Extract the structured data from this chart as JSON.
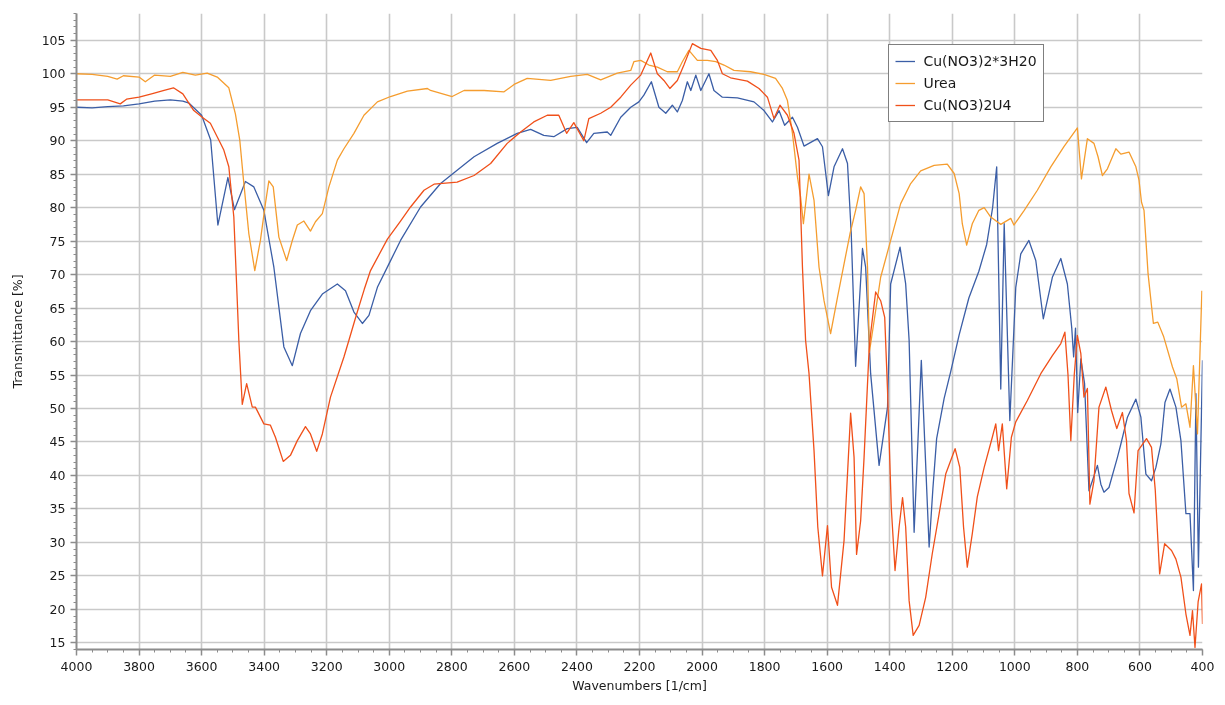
{
  "chart_data": {
    "type": "line",
    "xlabel": "Wavenumbers [1/cm]",
    "ylabel": "Transmittance [%]",
    "xlim": [
      4000,
      400
    ],
    "ylim": [
      14,
      109
    ],
    "xticks": [
      4000,
      3800,
      3600,
      3400,
      3200,
      3000,
      2800,
      2600,
      2400,
      2200,
      2000,
      1800,
      1600,
      1400,
      1200,
      1000,
      800,
      600,
      400
    ],
    "yticks": [
      15,
      20,
      25,
      30,
      35,
      40,
      45,
      50,
      55,
      60,
      65,
      70,
      75,
      80,
      85,
      90,
      95,
      100,
      105
    ],
    "grid": true,
    "legend": "top right",
    "series": [
      {
        "name": "Cu(NO3)2*3H20",
        "color": "#3b5ea6",
        "x": [
          4000,
          3950,
          3900,
          3850,
          3800,
          3750,
          3700,
          3660,
          3640,
          3600,
          3571,
          3548,
          3516,
          3495,
          3460,
          3433,
          3401,
          3369,
          3337,
          3310,
          3284,
          3252,
          3214,
          3166,
          3140,
          3113,
          3086,
          3065,
          3038,
          3001,
          2964,
          2900,
          2836,
          2804,
          2729,
          2655,
          2591,
          2548,
          2506,
          2474,
          2431,
          2399,
          2369,
          2346,
          2303,
          2292,
          2260,
          2228,
          2202,
          2186,
          2162,
          2138,
          2116,
          2095,
          2079,
          2063,
          2047,
          2036,
          2020,
          2004,
          1978,
          1962,
          1935,
          1887,
          1834,
          1802,
          1775,
          1754,
          1736,
          1711,
          1695,
          1674,
          1631,
          1615,
          1596,
          1578,
          1551,
          1535,
          1523,
          1509,
          1487,
          1477,
          1461,
          1434,
          1407,
          1397,
          1367,
          1349,
          1338,
          1322,
          1299,
          1274,
          1262,
          1250,
          1226,
          1205,
          1178,
          1147,
          1115,
          1090,
          1071,
          1058,
          1045,
          1034,
          1016,
          997,
          981,
          955,
          933,
          909,
          880,
          853,
          832,
          818,
          812,
          806,
          799,
          789,
          777,
          763,
          752,
          736,
          725,
          715,
          699,
          672,
          661,
          640,
          613,
          597,
          581,
          563,
          549,
          533,
          520,
          504,
          485,
          469,
          453,
          440,
          429,
          421,
          413,
          400
        ],
        "values": [
          95.0,
          94.9,
          95.1,
          95.2,
          95.5,
          95.9,
          96.1,
          95.9,
          95.6,
          93.8,
          90.1,
          77.4,
          84.5,
          79.7,
          83.9,
          83.1,
          79.6,
          71.1,
          59.2,
          56.4,
          61.2,
          64.6,
          67.1,
          68.6,
          67.6,
          64.4,
          62.7,
          63.9,
          68.1,
          71.6,
          75.1,
          80.1,
          83.6,
          84.8,
          87.6,
          89.6,
          91.1,
          91.7,
          90.8,
          90.6,
          91.8,
          92.0,
          89.7,
          91.1,
          91.3,
          90.8,
          93.5,
          95.0,
          95.8,
          96.8,
          98.8,
          95.0,
          94.1,
          95.3,
          94.3,
          96.0,
          98.8,
          97.5,
          99.8,
          97.5,
          100.0,
          97.5,
          96.5,
          96.4,
          95.8,
          94.5,
          92.8,
          94.5,
          92.3,
          93.5,
          92.0,
          89.2,
          90.3,
          89.1,
          81.8,
          86.1,
          88.8,
          86.6,
          76.1,
          56.3,
          73.9,
          71.1,
          55.2,
          41.5,
          50.2,
          68.6,
          74.1,
          68.6,
          60.2,
          31.5,
          57.2,
          29.3,
          38.0,
          45.5,
          51.5,
          55.5,
          61.0,
          66.5,
          70.5,
          74.5,
          80.0,
          86.1,
          52.9,
          77.6,
          48.2,
          68.1,
          73.1,
          75.1,
          72.1,
          63.4,
          69.6,
          72.4,
          68.6,
          62.0,
          57.7,
          62.0,
          49.4,
          57.4,
          53.7,
          37.7,
          39.2,
          41.5,
          38.7,
          37.5,
          38.2,
          42.7,
          44.7,
          48.7,
          51.4,
          48.7,
          40.2,
          39.2,
          41.2,
          44.7,
          50.9,
          52.9,
          50.2,
          45.2,
          34.3,
          34.3,
          22.8,
          52.2,
          26.3,
          57.2
        ]
      },
      {
        "name": "Urea",
        "color": "#f59d2f",
        "x": [
          4000,
          3950,
          3900,
          3870,
          3850,
          3800,
          3780,
          3750,
          3700,
          3660,
          3620,
          3582,
          3550,
          3513,
          3492,
          3478,
          3467,
          3449,
          3430,
          3412,
          3396,
          3385,
          3371,
          3353,
          3328,
          3310,
          3294,
          3273,
          3252,
          3236,
          3214,
          3193,
          3166,
          3145,
          3113,
          3081,
          3038,
          2996,
          2942,
          2878,
          2868,
          2799,
          2761,
          2697,
          2633,
          2601,
          2559,
          2484,
          2420,
          2367,
          2324,
          2271,
          2228,
          2218,
          2196,
          2170,
          2143,
          2111,
          2079,
          2063,
          2042,
          2015,
          1983,
          1956,
          1930,
          1898,
          1845,
          1802,
          1765,
          1743,
          1727,
          1711,
          1695,
          1685,
          1676,
          1658,
          1642,
          1626,
          1610,
          1589,
          1567,
          1546,
          1527,
          1509,
          1493,
          1482,
          1471,
          1465,
          1429,
          1397,
          1365,
          1333,
          1301,
          1258,
          1216,
          1194,
          1178,
          1168,
          1154,
          1136,
          1115,
          1098,
          1077,
          1045,
          1013,
          1003,
          970,
          928,
          885,
          843,
          800,
          787,
          768,
          747,
          734,
          720,
          704,
          677,
          661,
          635,
          613,
          603,
          595,
          587,
          574,
          557,
          543,
          524,
          496,
          482,
          467,
          453,
          440,
          429,
          416,
          402
        ],
        "values": [
          100.0,
          99.9,
          99.6,
          99.2,
          99.7,
          99.5,
          98.8,
          99.8,
          99.6,
          100.2,
          99.8,
          100.1,
          99.5,
          97.9,
          94.0,
          90.1,
          84.6,
          76.1,
          70.6,
          75.1,
          80.6,
          84.0,
          83.1,
          75.6,
          72.1,
          75.1,
          77.4,
          78.0,
          76.5,
          77.9,
          79.1,
          83.1,
          87.1,
          88.8,
          91.1,
          93.8,
          95.8,
          96.6,
          97.4,
          97.8,
          97.5,
          96.6,
          97.5,
          97.5,
          97.3,
          98.4,
          99.3,
          99.0,
          99.6,
          99.9,
          99.1,
          100.1,
          100.5,
          101.8,
          102.0,
          101.3,
          101.0,
          100.3,
          100.3,
          101.8,
          103.5,
          102.0,
          102.0,
          101.8,
          101.3,
          100.5,
          100.3,
          99.9,
          99.3,
          97.8,
          96.0,
          91.1,
          84.6,
          81.6,
          77.6,
          85.0,
          81.1,
          71.1,
          66.1,
          61.2,
          66.6,
          71.6,
          76.1,
          79.6,
          83.1,
          82.1,
          71.1,
          58.4,
          69.6,
          75.1,
          80.6,
          83.6,
          85.5,
          86.3,
          86.5,
          85.1,
          82.1,
          77.6,
          74.4,
          77.6,
          79.6,
          80.0,
          78.6,
          77.5,
          78.4,
          77.4,
          79.6,
          82.6,
          86.1,
          89.1,
          91.9,
          84.3,
          90.3,
          89.6,
          87.6,
          84.8,
          85.8,
          88.8,
          88.0,
          88.3,
          86.1,
          84.1,
          80.8,
          79.6,
          70.1,
          62.7,
          62.9,
          60.7,
          56.2,
          54.4,
          50.2,
          50.7,
          47.2,
          56.4,
          46.2,
          67.6
        ]
      },
      {
        "name": "Cu(NO3)2U4",
        "color": "#f0501a",
        "x": [
          4000,
          3950,
          3900,
          3860,
          3840,
          3800,
          3760,
          3720,
          3690,
          3660,
          3646,
          3625,
          3598,
          3572,
          3545,
          3529,
          3513,
          3497,
          3486,
          3481,
          3470,
          3456,
          3438,
          3428,
          3401,
          3380,
          3364,
          3339,
          3316,
          3294,
          3268,
          3252,
          3232,
          3214,
          3188,
          3145,
          3129,
          3105,
          3080,
          3060,
          3006,
          2964,
          2932,
          2889,
          2857,
          2783,
          2729,
          2676,
          2623,
          2580,
          2538,
          2495,
          2458,
          2433,
          2410,
          2378,
          2362,
          2324,
          2292,
          2260,
          2228,
          2196,
          2164,
          2143,
          2122,
          2103,
          2079,
          2058,
          2031,
          2004,
          1972,
          1951,
          1935,
          1909,
          1855,
          1818,
          1791,
          1770,
          1751,
          1727,
          1706,
          1690,
          1679,
          1669,
          1658,
          1642,
          1630,
          1615,
          1599,
          1586,
          1567,
          1546,
          1535,
          1525,
          1514,
          1506,
          1493,
          1482,
          1466,
          1461,
          1445,
          1429,
          1416,
          1407,
          1395,
          1383,
          1370,
          1359,
          1349,
          1338,
          1325,
          1306,
          1285,
          1264,
          1242,
          1221,
          1191,
          1176,
          1164,
          1152,
          1136,
          1120,
          1098,
          1072,
          1061,
          1052,
          1040,
          1026,
          1011,
          997,
          960,
          917,
          880,
          853,
          840,
          830,
          821,
          810,
          800,
          789,
          779,
          768,
          760,
          747,
          731,
          709,
          691,
          674,
          656,
          643,
          635,
          619,
          606,
          579,
          563,
          551,
          537,
          521,
          499,
          485,
          469,
          453,
          440,
          432,
          424,
          414,
          403,
          400
        ],
        "values": [
          96.1,
          96.1,
          96.1,
          95.5,
          96.2,
          96.5,
          97.0,
          97.5,
          97.9,
          97.0,
          96.0,
          94.5,
          93.5,
          92.6,
          90.1,
          88.6,
          86.1,
          78.6,
          66.1,
          60.2,
          50.6,
          53.7,
          50.2,
          50.2,
          47.7,
          47.5,
          45.7,
          42.1,
          43.0,
          45.2,
          47.3,
          46.2,
          43.6,
          46.2,
          51.7,
          57.7,
          60.2,
          64.0,
          67.8,
          70.6,
          75.3,
          78.0,
          80.1,
          82.6,
          83.5,
          83.8,
          84.8,
          86.6,
          89.6,
          91.3,
          92.8,
          93.8,
          93.8,
          91.1,
          92.7,
          90.0,
          93.3,
          94.1,
          95.0,
          96.5,
          98.3,
          99.8,
          103.1,
          100.0,
          99.0,
          97.8,
          99.0,
          101.3,
          104.5,
          103.8,
          103.5,
          102.0,
          100.0,
          99.4,
          98.9,
          97.8,
          96.5,
          93.3,
          95.3,
          93.8,
          91.1,
          87.1,
          71.1,
          60.2,
          55.2,
          43.7,
          32.3,
          25.0,
          32.5,
          23.3,
          20.6,
          30.3,
          40.2,
          49.3,
          42.7,
          28.2,
          33.2,
          42.7,
          58.7,
          61.2,
          67.4,
          66.1,
          63.6,
          52.7,
          35.2,
          25.8,
          32.3,
          36.7,
          32.3,
          21.3,
          16.1,
          17.6,
          21.8,
          28.3,
          34.3,
          40.2,
          44.0,
          41.2,
          32.3,
          26.3,
          31.3,
          36.8,
          41.2,
          45.7,
          47.7,
          43.7,
          47.7,
          38.0,
          45.7,
          48.0,
          51.2,
          55.2,
          57.9,
          59.7,
          61.4,
          55.0,
          45.2,
          55.0,
          60.9,
          58.2,
          51.7,
          53.0,
          35.7,
          39.2,
          50.2,
          53.2,
          49.7,
          47.0,
          49.4,
          45.2,
          37.3,
          34.4,
          43.7,
          45.5,
          44.2,
          37.8,
          25.3,
          29.8,
          28.8,
          27.5,
          24.8,
          19.3,
          16.1,
          19.8,
          14.3,
          21.1,
          23.8,
          17.8
        ]
      }
    ]
  }
}
